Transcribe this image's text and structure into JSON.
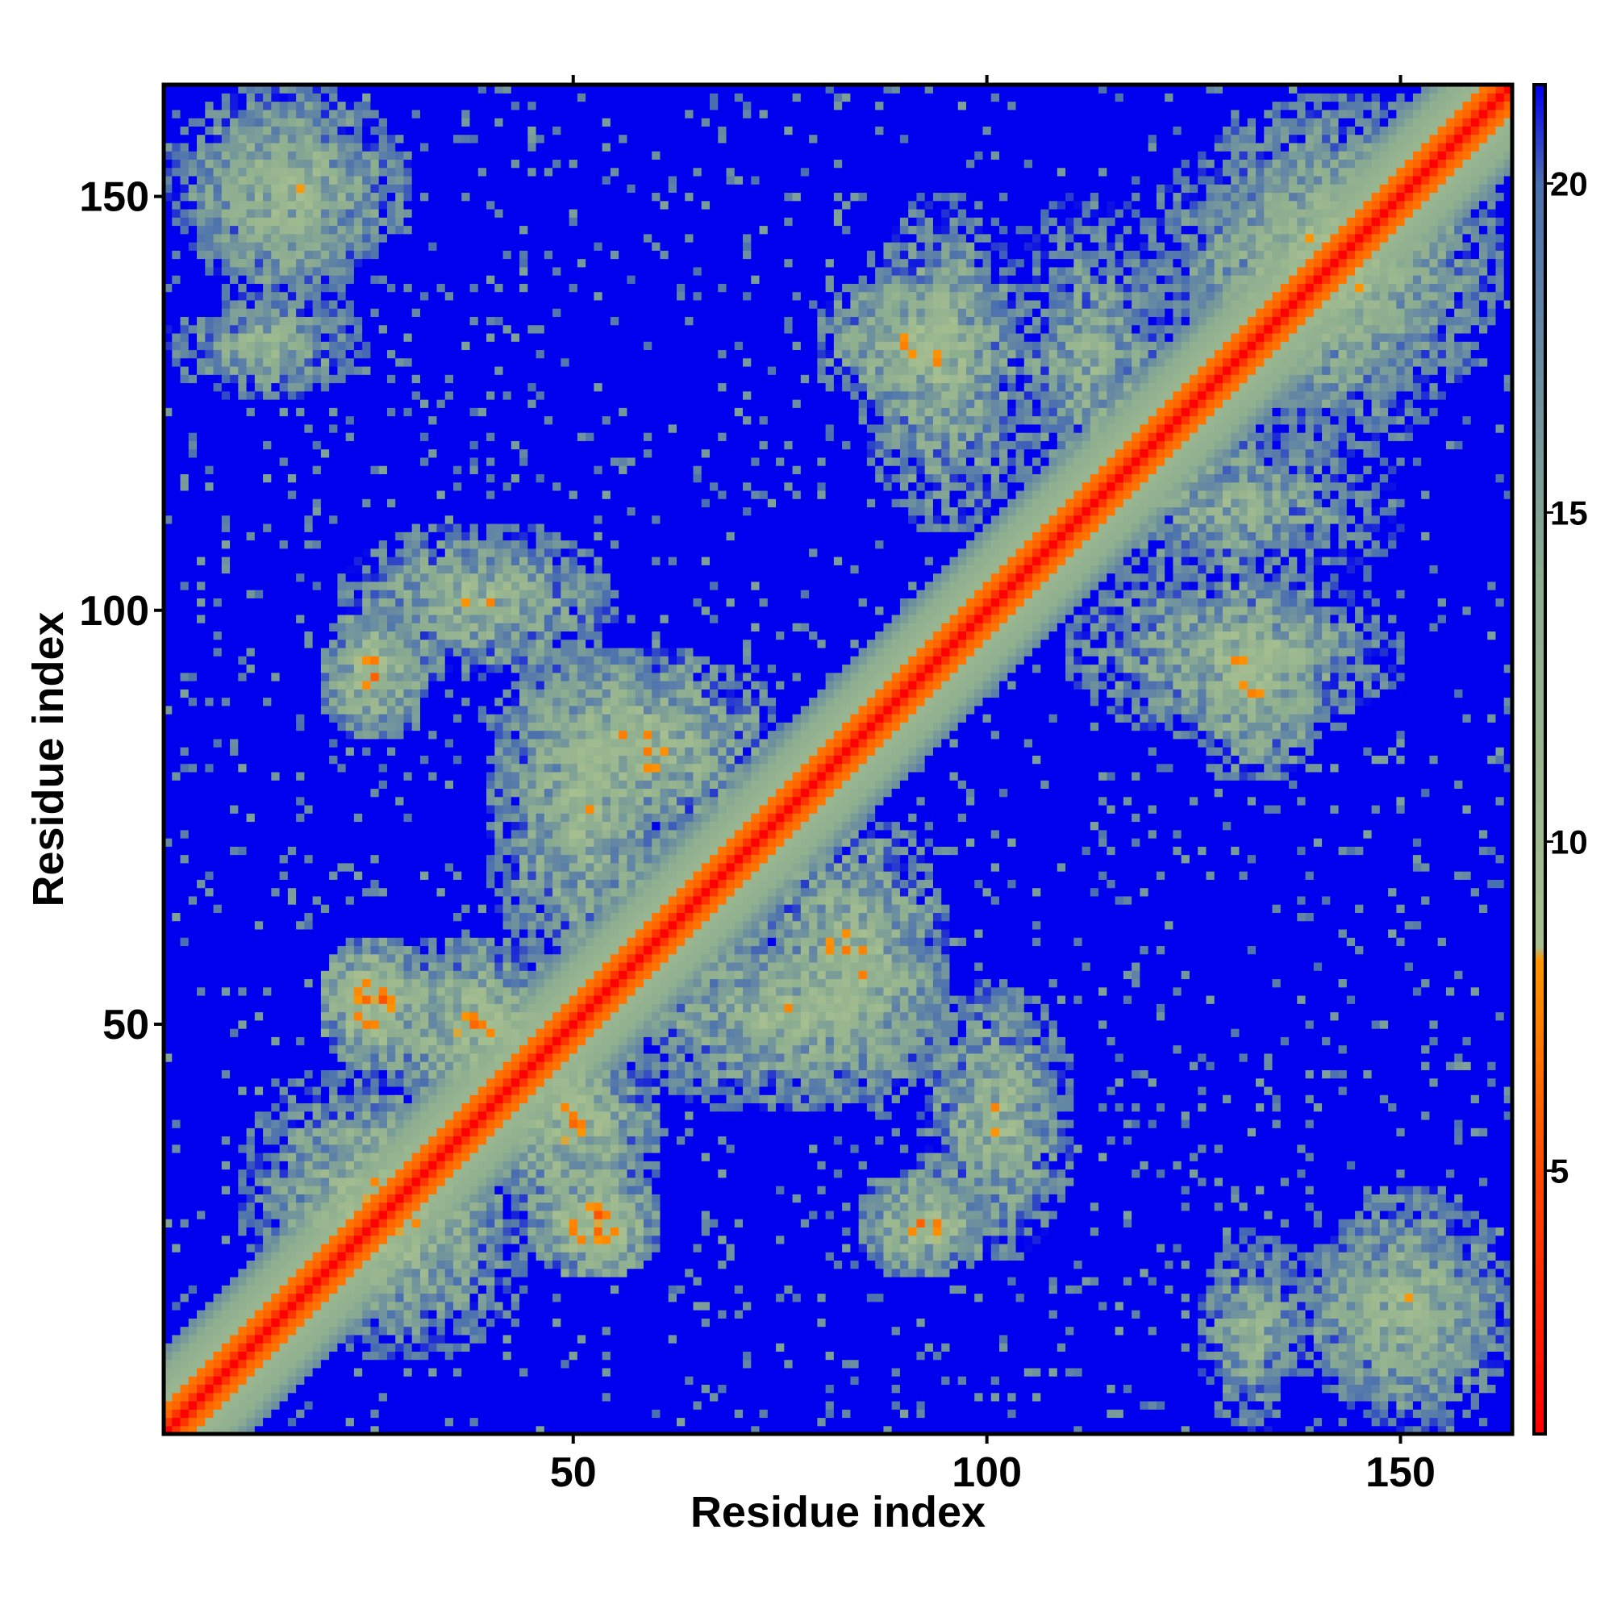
{
  "chart_data": {
    "type": "heatmap",
    "title": "",
    "xlabel": "Residue index",
    "ylabel": "Residue index",
    "n_residues": 163,
    "xlim": [
      1,
      163
    ],
    "ylim": [
      1,
      163
    ],
    "x_ticks": [
      50,
      100,
      150
    ],
    "y_ticks": [
      50,
      100,
      150
    ],
    "x_tick_labels": [
      "50",
      "100",
      "150"
    ],
    "y_tick_labels": [
      "50",
      "100",
      "150"
    ],
    "colorbar": {
      "range": [
        1,
        21.5
      ],
      "ticks": [
        5,
        10,
        15,
        20
      ],
      "tick_labels": [
        "5",
        "10",
        "15",
        "20"
      ],
      "stops": [
        {
          "value": 1,
          "color": "#ff0000"
        },
        {
          "value": 5,
          "color": "#ff4a00"
        },
        {
          "value": 8.2,
          "color": "#ff9500"
        },
        {
          "value": 8.4,
          "color": "#a8c090"
        },
        {
          "value": 14,
          "color": "#8cad90"
        },
        {
          "value": 20,
          "color": "#4a6fb0"
        },
        {
          "value": 21.5,
          "color": "#0000ee"
        }
      ]
    },
    "matrix": "symmetric pairwise distance map (163 x 163 residues); values clipped at 21.5 (blue)",
    "diagonal_band": {
      "distance": 3.8
    },
    "contact_regions": [
      {
        "x": [
          1,
          30
        ],
        "y": [
          140,
          163
        ],
        "value": 11
      },
      {
        "x": [
          1,
          25
        ],
        "y": [
          126,
          138
        ],
        "value": 12
      },
      {
        "x": [
          22,
          55
        ],
        "y": [
          92,
          110
        ],
        "value": 11
      },
      {
        "x": [
          40,
          75
        ],
        "y": [
          72,
          95
        ],
        "value": 10
      },
      {
        "x": [
          25,
          50
        ],
        "y": [
          40,
          60
        ],
        "value": 10
      },
      {
        "x": [
          10,
          40
        ],
        "y": [
          15,
          45
        ],
        "value": 11
      },
      {
        "x": [
          45,
          60
        ],
        "y": [
          20,
          32
        ],
        "value": 8
      },
      {
        "x": [
          55,
          95
        ],
        "y": [
          40,
          62
        ],
        "value": 11
      },
      {
        "x": [
          85,
          100
        ],
        "y": [
          20,
          32
        ],
        "value": 9
      },
      {
        "x": [
          80,
          100
        ],
        "y": [
          125,
          140
        ],
        "value": 10
      },
      {
        "x": [
          110,
          150
        ],
        "y": [
          85,
          105
        ],
        "value": 11
      },
      {
        "x": [
          120,
          162
        ],
        "y": [
          125,
          160
        ],
        "value": 11
      },
      {
        "x": [
          135,
          162
        ],
        "y": [
          5,
          25
        ],
        "value": 12
      },
      {
        "x": [
          110,
          150
        ],
        "y": [
          100,
          125
        ],
        "value": 13
      }
    ]
  }
}
